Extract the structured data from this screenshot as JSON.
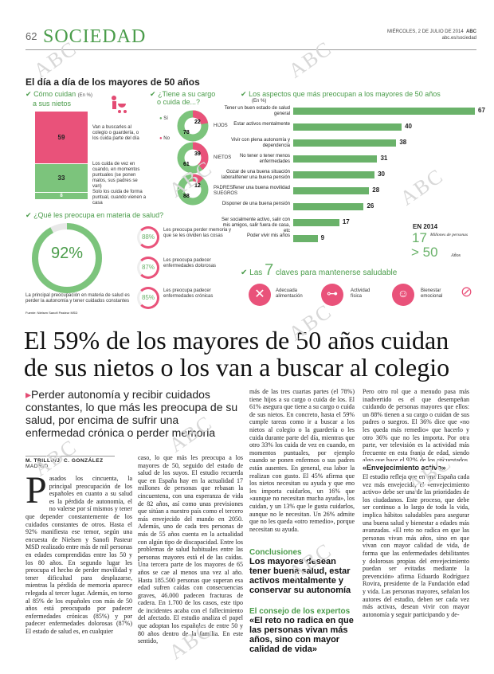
{
  "header": {
    "page": "62",
    "section": "SOCIEDAD",
    "date": "MIÉRCOLES, 2 DE JULIO DE 2014",
    "brand": "ABC",
    "url": "abc.es/sociedad"
  },
  "watermark": "ABC",
  "infographic": {
    "title": "El día a día de los mayores de 50 años",
    "care": {
      "heading": "Cómo cuidan",
      "heading2": "a sus nietos",
      "unit": "(En %)",
      "segments": [
        {
          "value": 59,
          "label": "Van a buscarles al colegio o guardería, o los cuida parte del día"
        },
        {
          "value": 33,
          "label": "Los cuida de vez en cuando, en momentos puntuales (se ponen malos, sus padres se van)"
        },
        {
          "value": 8,
          "label": "Solo los cuida de forma puntual, cuando vienen a casa"
        }
      ]
    },
    "charge": {
      "heading": "¿Tiene a su cargo",
      "heading2": "o cuida de...?",
      "yes": "Sí",
      "no": "No",
      "items": [
        {
          "label": "HIJOS",
          "yes": 78,
          "no": 22
        },
        {
          "label": "NIETOS",
          "yes": 61,
          "no": 39
        },
        {
          "label": "PADRES/ SUEGROS",
          "yes": 88,
          "no": 12
        }
      ]
    },
    "worries": {
      "heading": "Los aspectos que más preocupan a los mayores de 50 años",
      "unit": "(En %)",
      "bars": [
        {
          "label": "Tener un buen estado de salud general",
          "value": 67
        },
        {
          "label": "Estar activos mentalmente",
          "value": 40
        },
        {
          "label": "Vivir con plena autonomía y dependencia",
          "value": 38
        },
        {
          "label": "No tener o tener menos enfermedades",
          "value": 31
        },
        {
          "label": "Gozar de una buena situación laboral/tener una buena pensión",
          "value": 30
        },
        {
          "label": "Tener una buena movilidad",
          "value": 28
        },
        {
          "label": "Disponer de una buena pensión",
          "value": 26
        },
        {
          "label": "Ser socialmente activo, salir con mis amigos, salir fuera de casa, etc",
          "value": 17
        },
        {
          "label": "Poder vivir mis años",
          "value": 9
        }
      ],
      "stat": {
        "year": "EN 2014",
        "number": "17",
        "unit": "Millones de personas",
        "age": "> 50",
        "age_unit": "Años"
      }
    },
    "health": {
      "heading": "¿Qué les preocupa en materia de salud?",
      "big": "92%",
      "big_text": "La principal preocupación en materia de salud es perder la autonomía y tener cuidados constantes",
      "source": "Fuente: Nielsen Sanofi Pasteur MSD",
      "items": [
        {
          "pct": "88%",
          "text": "Les preocupa perder memoria y que se les olviden las cosas"
        },
        {
          "pct": "87%",
          "text": "Les preocupa padecer enfermedades dolorosas"
        },
        {
          "pct": "85%",
          "text": "Les preocupa padecer enfermedades crónicas"
        }
      ]
    },
    "keys": {
      "heading_pre": "Las",
      "heading_num": "7",
      "heading_post": "claves para mantenerse saludable",
      "items": [
        {
          "label": "Adecuada alimentación"
        },
        {
          "label": "Actividad física"
        },
        {
          "label": "Bienestar emocional"
        }
      ]
    }
  },
  "article": {
    "headline": "El 59% de los mayores de 50 años cuidan de sus nietos o los van a buscar al colegio",
    "subhead": "Perder autonomía y recibir cuidados constantes, lo que más les preocupa de su salud, por encima de sufrir una enfermedad crónica o perder memoria",
    "byline": "M. TRILLO/J. C. GONZÁLEZ",
    "city": "MADRID",
    "dropcap": "P",
    "col1": "asados los cincuenta, la principal preocupación de los españoles en cuanto a su salud es la pérdida de autonomía, el no valerse por sí mismos y tener que depender constantemente de los cuidados constantes de otros. Hasta el 92% manifiesta ese temor, según una encuesta de Nielsen y Sanofi Pasteur MSD realizado entre más de mil personas en edades comprendidas entre los 50 y los 80 años. En segundo lugar les preocupa el hecho de perder movilidad y tener dificultad para desplazarse, mientras la pérdida de memoria aparece relegada al tercer lugar. Además, en torno al 85% de los españoles con más de 50 años está preocupado por padecer enfermedades crónicas (85%) y por padecer enfermedades dolorosas (87%) El estado de salud es, en cualquier",
    "col2": "caso, lo que más les preocupa a los mayores de 50, seguido del estado de salud de los suyos. El estudio recuerda que en España hay en la actualidad 17 millones de personas que rebasan la cincuentena, con una esperanza de vida de 82 años, así como unas previsiones que sitúan a nuestro país como el tercero más envejecido del mundo en 2050. Además, uno de cada tres personas de más de 55 años cuenta en la actualidad con algún tipo de discapacidad. Entre los problemas de salud habituales entre las personas mayores está el de las caídas. Una tercera parte de los mayores de 65 años se cae al menos una vez al año. Hasta 185.500 personas que superan esa edad sufren caídas con consecuencias graves, 46.000 padecen fracturas de cadera. En 1.700 de los casos, este tipo de incidentes acaba con el fallecimiento del afectado. El estudio analiza el papel que adoptan los españoles de entre 50 y 80 años dentro de la familia. En este sentido,",
    "col3": "más de las tres cuartas partes (el 78%) tiene hijos a su cargo o cuida de los. El 61% asegura que tiene a su cargo o cuida de sus nietos. En concreto, hasta el 59% cumple tareas como ir a buscar a los nietos al colegio o la guardería o les cuida durante parte del día, mientras que otro 33% los cuida de vez en cuando, en momentos puntuales, por ejemplo cuando se ponen enfermos o sus padres están ausentes. En general, esa labor la realizan con gusto. El 45% afirma que los nietos necesitan su ayuda y que eno les importa cuidarlos, un 16% que «aunque no necesitan mucha ayuda», los cuidan, y un 13% que le gusta cuidarlos, aunque no le necesitan. Un 26% admite que no les queda «otro remedio», porque necesitan su ayuda.",
    "col4": "Pero otro rol que a menudo pasa más inadvertido es el que desempeñan cuidando de personas mayores que ellos: un 88% tienen a su cargo o cuidan de sus padres o suegros. El 36% dice que «no les queda más remedio» que hacerlo y otro 36% que no les importa. Por otra parte, ver televisión es la actividad más frecuente en esta franja de edad, siendo algo que hace el 92% de los encuestados. Le siguen hacer la compra, pasear y leer.",
    "col4b": "El estudio refleja que en una España cada vez más envejecida, el «envejecimiento activo» debe ser una de las prioridades de los ciudadanos. Este proceso, que debe ser continuo a lo largo de toda la vida, implica hábitos saludables para asegurar una buena salud y bienestar a edades más avanzadas. «El reto no radica en que las personas vivan más años, sino en que vivan con mayor calidad de vida, de forma que las enfermedades debilitantes y dolorosas propias del envejecimiento puedan ser evitadas mediante la prevención» afirma Eduardo Rodríguez Rovira, presidente de la Fundación edad y vida. Las personas mayores, señalan los autores del estudio, deben ser cada vez más activas, desean vivir con mayor autonomía y seguir participando y de-",
    "subhead4": "«Envejecimiento activo»",
    "concl_h": "Conclusiones",
    "concl": "Los mayores desean tener buena salud, estar activos mentalmente y conservar su autonomía",
    "expert_h": "El consejo de los expertos",
    "expert": "«El reto no radica en que las personas vivan más años, sino con mayor calidad de vida»"
  }
}
